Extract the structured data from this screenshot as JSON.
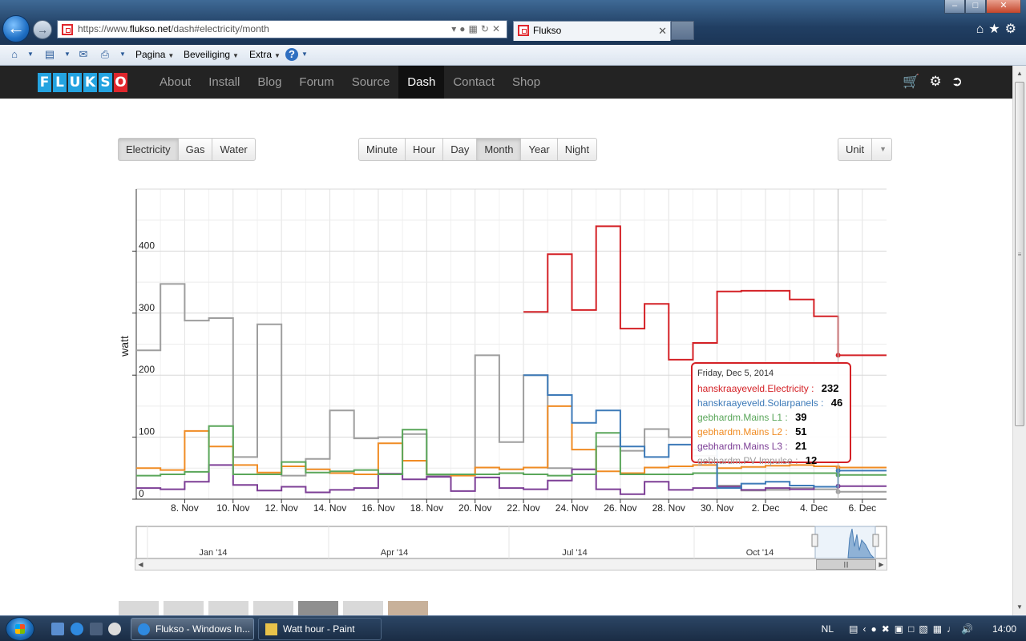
{
  "browser": {
    "url_prefix": "https://www.",
    "url_domain": "flukso.net",
    "url_path": "/dash#electricity/month",
    "tab_title": "Flukso",
    "command_bar": [
      "Pagina",
      "Beveiliging",
      "Extra"
    ]
  },
  "nav": {
    "logo_letters": [
      "F",
      "L",
      "U",
      "K",
      "S",
      "O"
    ],
    "links": [
      "About",
      "Install",
      "Blog",
      "Forum",
      "Source",
      "Dash",
      "Contact",
      "Shop"
    ],
    "active": "Dash"
  },
  "controls": {
    "resource": [
      "Electricity",
      "Gas",
      "Water"
    ],
    "resource_active": "Electricity",
    "interval": [
      "Minute",
      "Hour",
      "Day",
      "Month",
      "Year",
      "Night"
    ],
    "interval_active": "Month",
    "unit_label": "Unit"
  },
  "chart_data": {
    "type": "line",
    "step": true,
    "ylabel": "watt",
    "ylim": [
      0,
      500
    ],
    "yticks": [
      0,
      100,
      200,
      300,
      400
    ],
    "x_start": 6,
    "x_end": 37,
    "xticks": [
      {
        "v": 8,
        "label": "8. Nov"
      },
      {
        "v": 10,
        "label": "10. Nov"
      },
      {
        "v": 12,
        "label": "12. Nov"
      },
      {
        "v": 14,
        "label": "14. Nov"
      },
      {
        "v": 16,
        "label": "16. Nov"
      },
      {
        "v": 18,
        "label": "18. Nov"
      },
      {
        "v": 20,
        "label": "20. Nov"
      },
      {
        "v": 22,
        "label": "22. Nov"
      },
      {
        "v": 24,
        "label": "24. Nov"
      },
      {
        "v": 26,
        "label": "26. Nov"
      },
      {
        "v": 28,
        "label": "28. Nov"
      },
      {
        "v": 30,
        "label": "30. Nov"
      },
      {
        "v": 32,
        "label": "2. Dec"
      },
      {
        "v": 34,
        "label": "4. Dec"
      },
      {
        "v": 36,
        "label": "6. Dec"
      }
    ],
    "grid": true,
    "series": [
      {
        "name": "hanskraayeveld.Electricity",
        "color": "#d42126",
        "start": 22,
        "values": [
          302,
          395,
          305,
          440,
          275,
          315,
          225,
          252,
          335,
          336,
          336,
          322,
          295,
          232,
          232
        ]
      },
      {
        "name": "hanskraayeveld.Solarpanels",
        "color": "#3d7ab8",
        "start": 22,
        "values": [
          200,
          168,
          123,
          143,
          85,
          68,
          88,
          80,
          18,
          25,
          28,
          22,
          20,
          46,
          46
        ]
      },
      {
        "name": "gebhardm.Mains L1",
        "color": "#5aa65a",
        "start": 6,
        "values": [
          38,
          40,
          44,
          118,
          40,
          40,
          60,
          43,
          45,
          47,
          40,
          112,
          40,
          40,
          40,
          42,
          40,
          38,
          40,
          107,
          40,
          40,
          40,
          42,
          42,
          42,
          42,
          42,
          42,
          39,
          39
        ]
      },
      {
        "name": "gebhardm.Mains L2",
        "color": "#f08c24",
        "start": 6,
        "values": [
          50,
          47,
          110,
          85,
          55,
          43,
          53,
          48,
          42,
          40,
          90,
          62,
          40,
          38,
          51,
          48,
          51,
          150,
          80,
          45,
          42,
          51,
          53,
          55,
          50,
          52,
          54,
          55,
          53,
          51,
          51
        ]
      },
      {
        "name": "gebhardm.Mains L3",
        "color": "#7d3f96",
        "start": 6,
        "values": [
          18,
          16,
          28,
          55,
          23,
          14,
          20,
          11,
          15,
          18,
          41,
          32,
          36,
          13,
          35,
          18,
          16,
          30,
          48,
          16,
          8,
          28,
          15,
          18,
          20,
          15,
          18,
          16,
          20,
          21,
          21
        ]
      },
      {
        "name": "gebhardm.PV Impulse",
        "color": "#9e9e9e",
        "start": 6,
        "values": [
          240,
          347,
          288,
          292,
          68,
          282,
          38,
          65,
          143,
          98,
          100,
          105,
          38,
          40,
          232,
          92,
          200,
          50,
          40,
          85,
          78,
          113,
          100,
          70,
          22,
          14,
          15,
          18,
          16,
          12,
          12
        ]
      }
    ]
  },
  "tooltip": {
    "date": "Friday, Dec 5, 2014",
    "rows": [
      {
        "name": "hanskraayeveld.Electricity",
        "value": "232"
      },
      {
        "name": "hanskraayeveld.Solarpanels",
        "value": "46"
      },
      {
        "name": "gebhardm.Mains L1",
        "value": "39"
      },
      {
        "name": "gebhardm.Mains L2",
        "value": "51"
      },
      {
        "name": "gebhardm.Mains L3",
        "value": "21"
      },
      {
        "name": "gebhardm.PV Impulse",
        "value": "12"
      }
    ]
  },
  "navigator": {
    "labels": [
      "Jan '14",
      "Apr '14",
      "Jul '14",
      "Oct '14"
    ]
  },
  "taskbar": {
    "items": [
      "Flukso - Windows In...",
      "Watt hour - Paint"
    ],
    "lang": "NL",
    "clock": "14:00"
  }
}
